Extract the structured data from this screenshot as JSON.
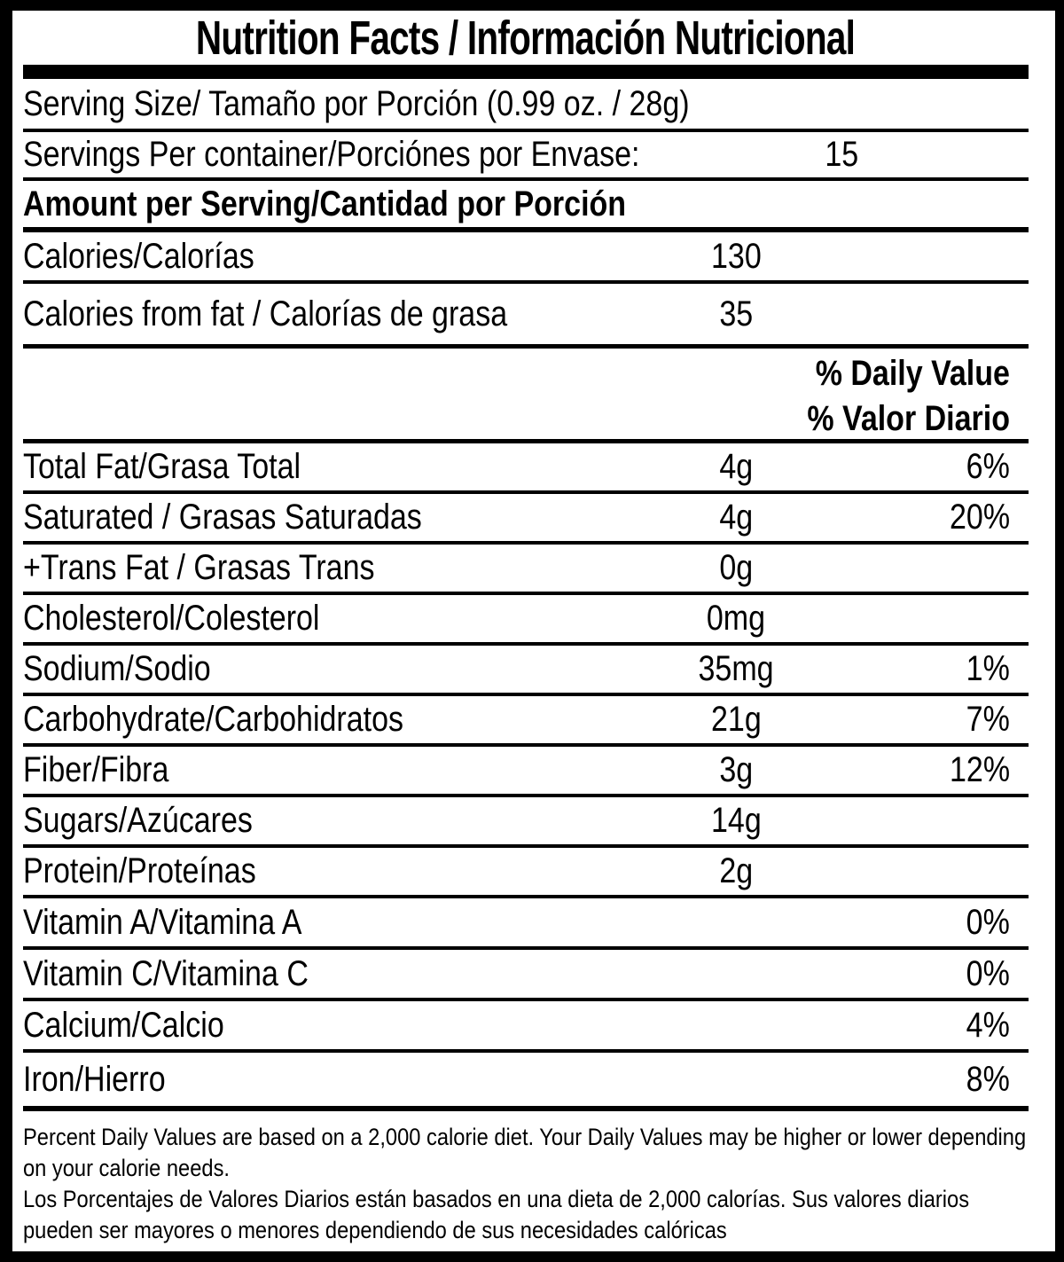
{
  "label": {
    "title": "Nutrition Facts / Información Nutricional",
    "colors": {
      "text": "#000000",
      "background": "#ffffff"
    }
  },
  "rows": {
    "serving_size": {
      "label": "Serving Size/ Tamaño por Porción  (0.99 oz. / 28g)"
    },
    "servings_per_container": {
      "label": "Servings Per container/Porciónes por Envase:",
      "value": "15"
    },
    "amount_per_serving": {
      "label": "Amount per Serving/Cantidad por Porción"
    },
    "calories": {
      "label": "Calories/Calorías",
      "value": "130"
    },
    "calories_from_fat": {
      "label": "Calories from fat / Calorías de grasa",
      "value": "35"
    },
    "daily_value_header": {
      "en": "% Daily Value",
      "es": "% Valor Diario"
    },
    "total_fat": {
      "label": "Total Fat/Grasa Total",
      "value": "4g",
      "percent": "6%"
    },
    "saturated_fat": {
      "label": "Saturated / Grasas Saturadas",
      "value": "4g",
      "percent": "20%"
    },
    "trans_fat": {
      "label": "+Trans Fat / Grasas Trans",
      "value": "0g",
      "percent": ""
    },
    "cholesterol": {
      "label": "Cholesterol/Colesterol",
      "value": "0mg",
      "percent": ""
    },
    "sodium": {
      "label": "Sodium/Sodio",
      "value": "35mg",
      "percent": "1%"
    },
    "carbohydrate": {
      "label": "Carbohydrate/Carbohidratos",
      "value": "21g",
      "percent": "7%"
    },
    "fiber": {
      "label": "Fiber/Fibra",
      "value": "3g",
      "percent": "12%"
    },
    "sugars": {
      "label": "Sugars/Azúcares",
      "value": "14g",
      "percent": ""
    },
    "protein": {
      "label": "Protein/Proteínas",
      "value": "2g",
      "percent": ""
    },
    "vitamin_a": {
      "label": "Vitamin A/Vitamina A",
      "value": "",
      "percent": "0%"
    },
    "vitamin_c": {
      "label": "Vitamin C/Vitamina C",
      "value": "",
      "percent": "0%"
    },
    "calcium": {
      "label": "Calcium/Calcio",
      "value": "",
      "percent": "4%"
    },
    "iron": {
      "label": "Iron/Hierro",
      "value": "",
      "percent": "8%"
    }
  },
  "footnotes": {
    "en": "Percent Daily Values are based on a 2,000 calorie diet. Your Daily Values may be higher or lower depending on your calorie needs.",
    "es": "Los Porcentajes de Valores Diarios están basados en una dieta de 2,000 calorías. Sus valores diarios pueden ser mayores o menores dependiendo de sus necesidades calóricas"
  }
}
